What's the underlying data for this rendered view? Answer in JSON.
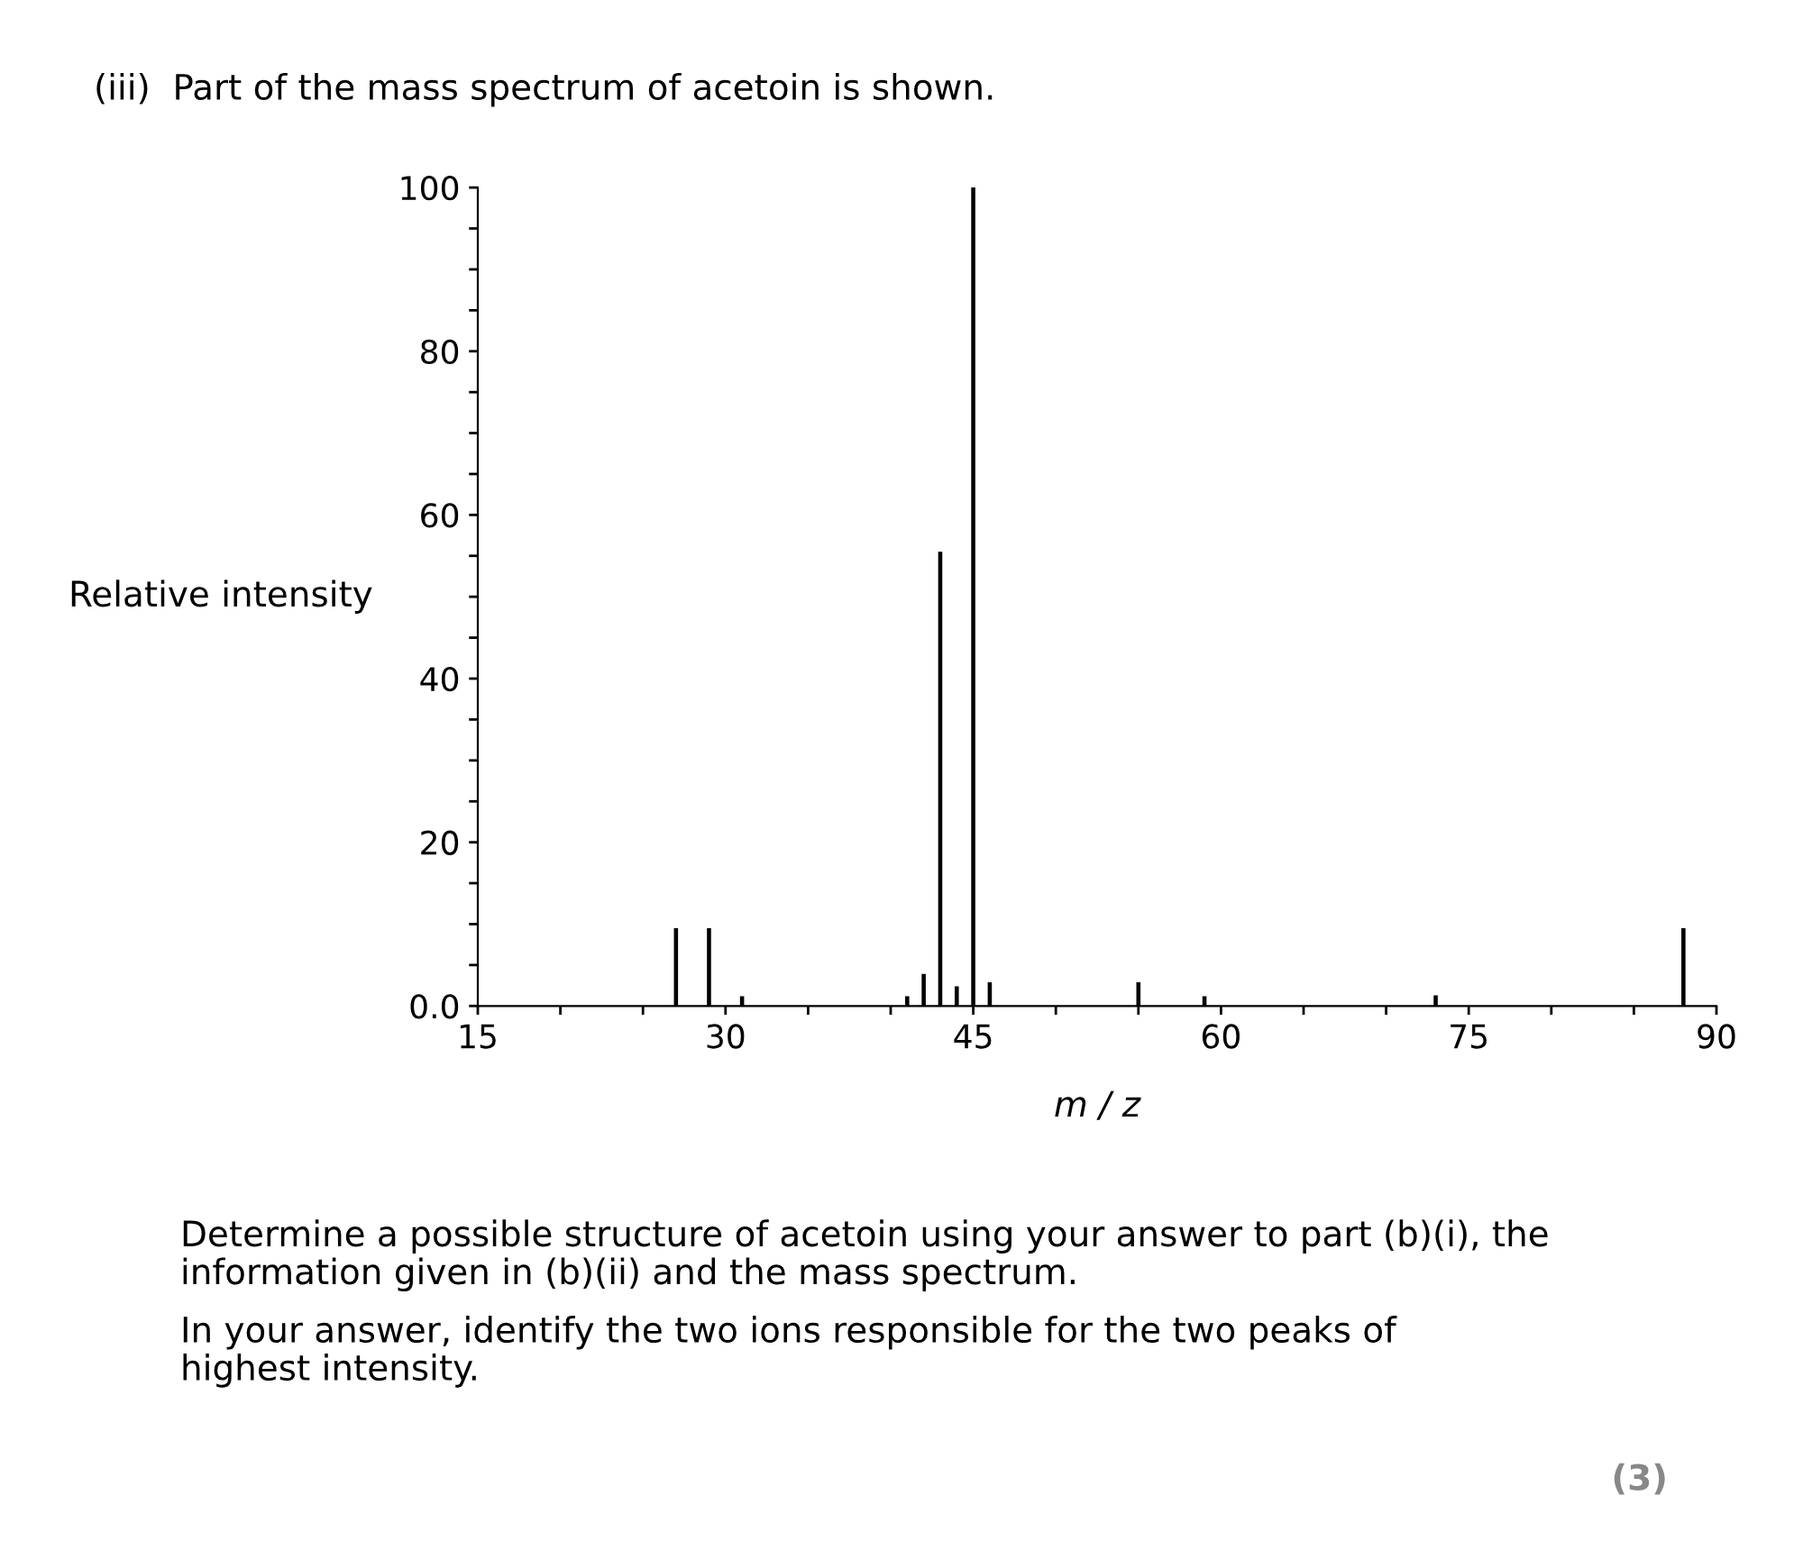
{
  "chart_data": {
    "type": "bar",
    "title": "(iii)  Part of the mass spectrum of acetoin is shown.",
    "xlabel": "m / z",
    "ylabel": "Relative intensity",
    "x": [
      27,
      29,
      31,
      41,
      42,
      43,
      44,
      45,
      46,
      55,
      59,
      73,
      88
    ],
    "values": [
      9.5,
      9.5,
      1.2,
      1.2,
      3.9,
      55.5,
      2.4,
      100,
      2.9,
      2.9,
      1.2,
      1.3,
      9.5
    ],
    "color": "#000000",
    "xlim": [
      15,
      90
    ],
    "xticks": [
      15,
      {
        "value": 20,
        "label": null
      },
      {
        "value": 25,
        "label": null
      },
      30,
      {
        "value": 35,
        "label": null
      },
      {
        "value": 40,
        "label": null
      },
      45,
      {
        "value": 50,
        "label": null
      },
      {
        "value": 55,
        "label": null
      },
      60,
      {
        "value": 65,
        "label": null
      },
      {
        "value": 70,
        "label": null
      },
      75,
      {
        "value": 80,
        "label": null
      },
      {
        "value": 85,
        "label": null
      },
      90
    ],
    "ylim": [
      0,
      100
    ],
    "yticks": [
      {
        "value": 0,
        "label": "0.0"
      },
      {
        "value": 5,
        "label": null
      },
      {
        "value": 10,
        "label": null
      },
      {
        "value": 15,
        "label": null
      },
      20,
      {
        "value": 25,
        "label": null
      },
      {
        "value": 30,
        "label": null
      },
      {
        "value": 35,
        "label": null
      },
      40,
      {
        "value": 45,
        "label": null
      },
      {
        "value": 50,
        "label": null
      },
      {
        "value": 55,
        "label": null
      },
      60,
      {
        "value": 65,
        "label": null
      },
      {
        "value": 70,
        "label": null
      },
      {
        "value": 75,
        "label": null
      },
      80,
      {
        "value": 85,
        "label": null
      },
      {
        "value": 90,
        "label": null
      },
      {
        "value": 95,
        "label": null
      },
      100
    ],
    "grid": false,
    "legend": false,
    "annotations": [
      "Determine a possible structure of acetoin using your answer to part (b)(i), the\ninformation given in (b)(ii) and the mass spectrum.",
      "In your answer, identify the two ions responsible for the two peaks of\nhighest intensity.",
      "(3)"
    ]
  }
}
